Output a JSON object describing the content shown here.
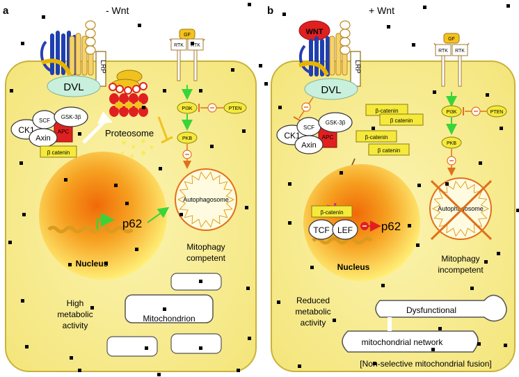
{
  "panels": {
    "a": {
      "letter": "a",
      "condition": "- Wnt",
      "receptor_lrp": "LRP",
      "dvl": "DVL",
      "gf": "GF",
      "rtk_left": "RTK",
      "rtk_right": "RTK",
      "pi3k": "PI3K",
      "pten": "PTEN",
      "pkb": "PKB",
      "ck1": "CK1",
      "scf": "SCF",
      "gsk": "GSK-3β",
      "axin": "Axin",
      "apc": "APC",
      "beta_catenin": "β catenin",
      "proteosome": "Proteosome",
      "autophagosome": "Autophagosome",
      "p62": "p62",
      "nucleus": "Nucleus",
      "mitophagy_line1": "Mitophagy",
      "mitophagy_line2": "competent",
      "activity_line1": "High",
      "activity_line2": "metabolic",
      "activity_line3": "activity",
      "mitochondrion": "Mitochondrion"
    },
    "b": {
      "letter": "b",
      "condition": "+ Wnt",
      "wnt": "WNT",
      "receptor_lrp": "LRP",
      "dvl": "DVL",
      "gf": "GF",
      "rtk_left": "RTK",
      "rtk_right": "RTK",
      "pi3k": "PI3K",
      "pten": "PTEN",
      "pkb": "PKB",
      "ck1": "CK1",
      "scf": "SCF",
      "gsk": "GSK-3β",
      "axin": "Axin",
      "apc": "APC",
      "beta_catenin_1": "β-catenin",
      "beta_catenin_2": "β catenin",
      "beta_catenin_3": "β-catenin",
      "beta_catenin_4": "β catenin",
      "beta_catenin_nuc": "β-catenin",
      "tcf": "TCF",
      "lef": "LEF",
      "autophagosome": "Autophagosome",
      "p62": "p62",
      "nucleus": "Nucleus",
      "mitophagy_line1": "Mitophagy",
      "mitophagy_line2": "incompetent",
      "activity_line1": "Reduced",
      "activity_line2": "metabolic",
      "activity_line3": "activity",
      "dysfunctional": "Dysfunctional",
      "mito_network": "mitochondrial network",
      "fusion": "[Non-selective mitochondrial fusion]"
    }
  },
  "colors": {
    "cell_fill": "#f8ee9a",
    "cell_stroke": "#c9b23a",
    "nucleus_core": "#f07a10",
    "label_red": "#c8102e",
    "arrow_green": "#39d439",
    "arrow_orange": "#e0701a",
    "box_yellow": "#f5ea3b",
    "wnt_red": "#e02020"
  }
}
